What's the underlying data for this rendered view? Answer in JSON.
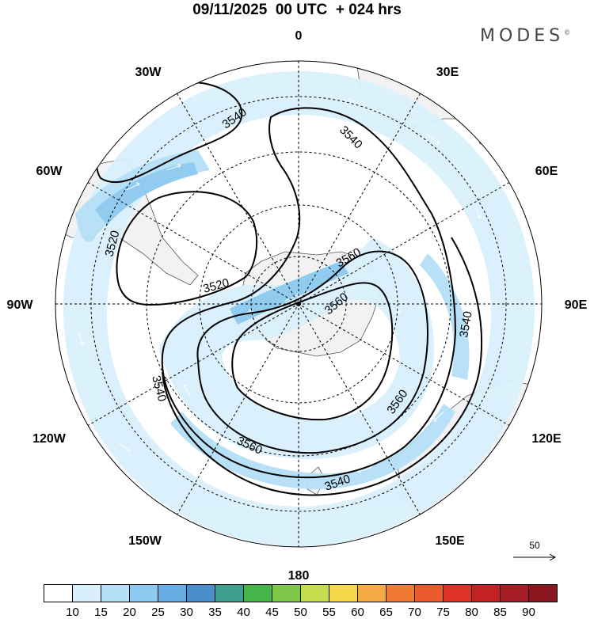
{
  "title": "09/11/2025  00 UTC  + 024 hrs",
  "brand": "MODES",
  "brand_mark": "©",
  "longitude_labels": [
    "0",
    "30E",
    "60E",
    "90E",
    "120E",
    "150E",
    "180",
    "150W",
    "120W",
    "90W",
    "60W",
    "30W"
  ],
  "contour_labels": [
    "3540",
    "3540",
    "3520",
    "3520",
    "3560",
    "3560",
    "3540",
    "3560",
    "3560",
    "3540",
    "3540"
  ],
  "vector_reference": "50",
  "colorbar": {
    "labels": [
      "10",
      "15",
      "20",
      "25",
      "30",
      "35",
      "40",
      "45",
      "50",
      "55",
      "60",
      "65",
      "70",
      "75",
      "80",
      "85",
      "90"
    ],
    "colors": [
      "#ffffff",
      "#d9f0fc",
      "#b5e0f7",
      "#8ccaf0",
      "#65ade4",
      "#4a8fcc",
      "#3fa091",
      "#46b54a",
      "#7ec94a",
      "#c5dc4e",
      "#f5d94c",
      "#f4ab43",
      "#f07a32",
      "#ea5a2a",
      "#dc3227",
      "#c42126",
      "#a51c24",
      "#8a1620"
    ]
  },
  "colors": {
    "land": "#f2f2f2",
    "shade_light": "#d9f0fc",
    "shade_mid": "#b5e0f7",
    "shade_strong": "#8ccaf0"
  }
}
